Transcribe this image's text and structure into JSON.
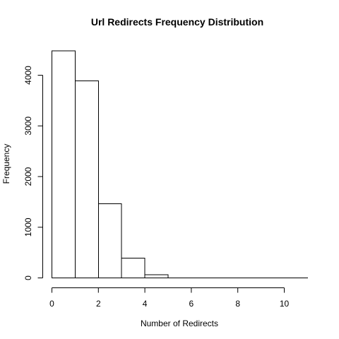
{
  "chart_data": {
    "type": "bar",
    "title": "Url Redirects Frequency Distribution",
    "xlabel": "Number of Redirects",
    "ylabel": "Frequency",
    "bins": [
      {
        "x0": 0,
        "x1": 1,
        "count": 4480
      },
      {
        "x0": 1,
        "x1": 2,
        "count": 3890
      },
      {
        "x0": 2,
        "x1": 3,
        "count": 1460
      },
      {
        "x0": 3,
        "x1": 4,
        "count": 390
      },
      {
        "x0": 4,
        "x1": 5,
        "count": 60
      },
      {
        "x0": 5,
        "x1": 6,
        "count": 3
      },
      {
        "x0": 6,
        "x1": 7,
        "count": 2
      },
      {
        "x0": 7,
        "x1": 8,
        "count": 1
      },
      {
        "x0": 8,
        "x1": 9,
        "count": 1
      },
      {
        "x0": 9,
        "x1": 10,
        "count": 1
      },
      {
        "x0": 10,
        "x1": 11,
        "count": 1
      }
    ],
    "xticks": [
      0,
      2,
      4,
      6,
      8,
      10
    ],
    "yticks": [
      0,
      1000,
      2000,
      3000,
      4000
    ],
    "xlim": [
      0,
      11
    ],
    "ylim": [
      0,
      4480
    ],
    "grid": false,
    "legend": "none"
  }
}
